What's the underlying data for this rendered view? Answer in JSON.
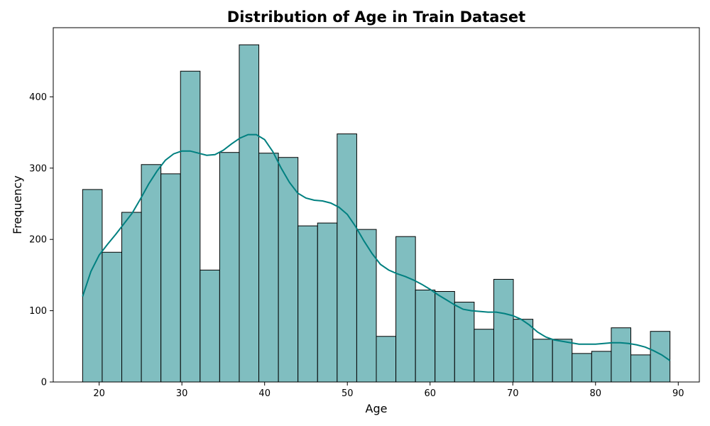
{
  "chart_data": {
    "type": "bar",
    "title": "Distribution of Age in Train Dataset",
    "xlabel": "Age",
    "ylabel": "Frequency",
    "xlim": [
      14.45,
      92.55
    ],
    "ylim": [
      0,
      497
    ],
    "xticks": [
      20,
      30,
      40,
      50,
      60,
      70,
      80,
      90
    ],
    "yticks": [
      0,
      100,
      200,
      300,
      400
    ],
    "bin_start": 18,
    "bin_width": 2.3667,
    "values": [
      270,
      182,
      238,
      305,
      292,
      436,
      157,
      322,
      473,
      321,
      315,
      219,
      223,
      348,
      214,
      64,
      204,
      129,
      127,
      112,
      74,
      144,
      88,
      60,
      60,
      40,
      43,
      76,
      38,
      71
    ],
    "kde": {
      "x": [
        18,
        19,
        20,
        21,
        22,
        23,
        24,
        25,
        26,
        27,
        28,
        29,
        30,
        31,
        32,
        33,
        34,
        35,
        36,
        37,
        38,
        39,
        40,
        41,
        42,
        43,
        44,
        45,
        46,
        47,
        48,
        49,
        50,
        51,
        52,
        53,
        54,
        55,
        56,
        57,
        58,
        59,
        60,
        61,
        62,
        63,
        64,
        65,
        66,
        67,
        68,
        69,
        70,
        71,
        72,
        73,
        74,
        75,
        76,
        77,
        78,
        79,
        80,
        81,
        82,
        83,
        84,
        85,
        86,
        87,
        88,
        89
      ],
      "y": [
        120,
        155,
        178,
        193,
        207,
        222,
        237,
        257,
        278,
        296,
        311,
        320,
        324,
        324,
        321,
        318,
        319,
        325,
        334,
        342,
        347,
        347,
        340,
        323,
        300,
        280,
        265,
        258,
        255,
        254,
        251,
        245,
        235,
        218,
        198,
        180,
        165,
        157,
        152,
        148,
        143,
        137,
        130,
        122,
        115,
        108,
        102,
        100,
        99,
        98,
        98,
        96,
        93,
        88,
        80,
        70,
        63,
        59,
        57,
        55,
        53,
        53,
        53,
        54,
        55,
        55,
        54,
        52,
        49,
        44,
        38,
        30
      ]
    },
    "bar_fill": "#80bec0",
    "bar_edge": "#000000",
    "kde_color": "#008080",
    "grid": false,
    "legend": "none"
  }
}
